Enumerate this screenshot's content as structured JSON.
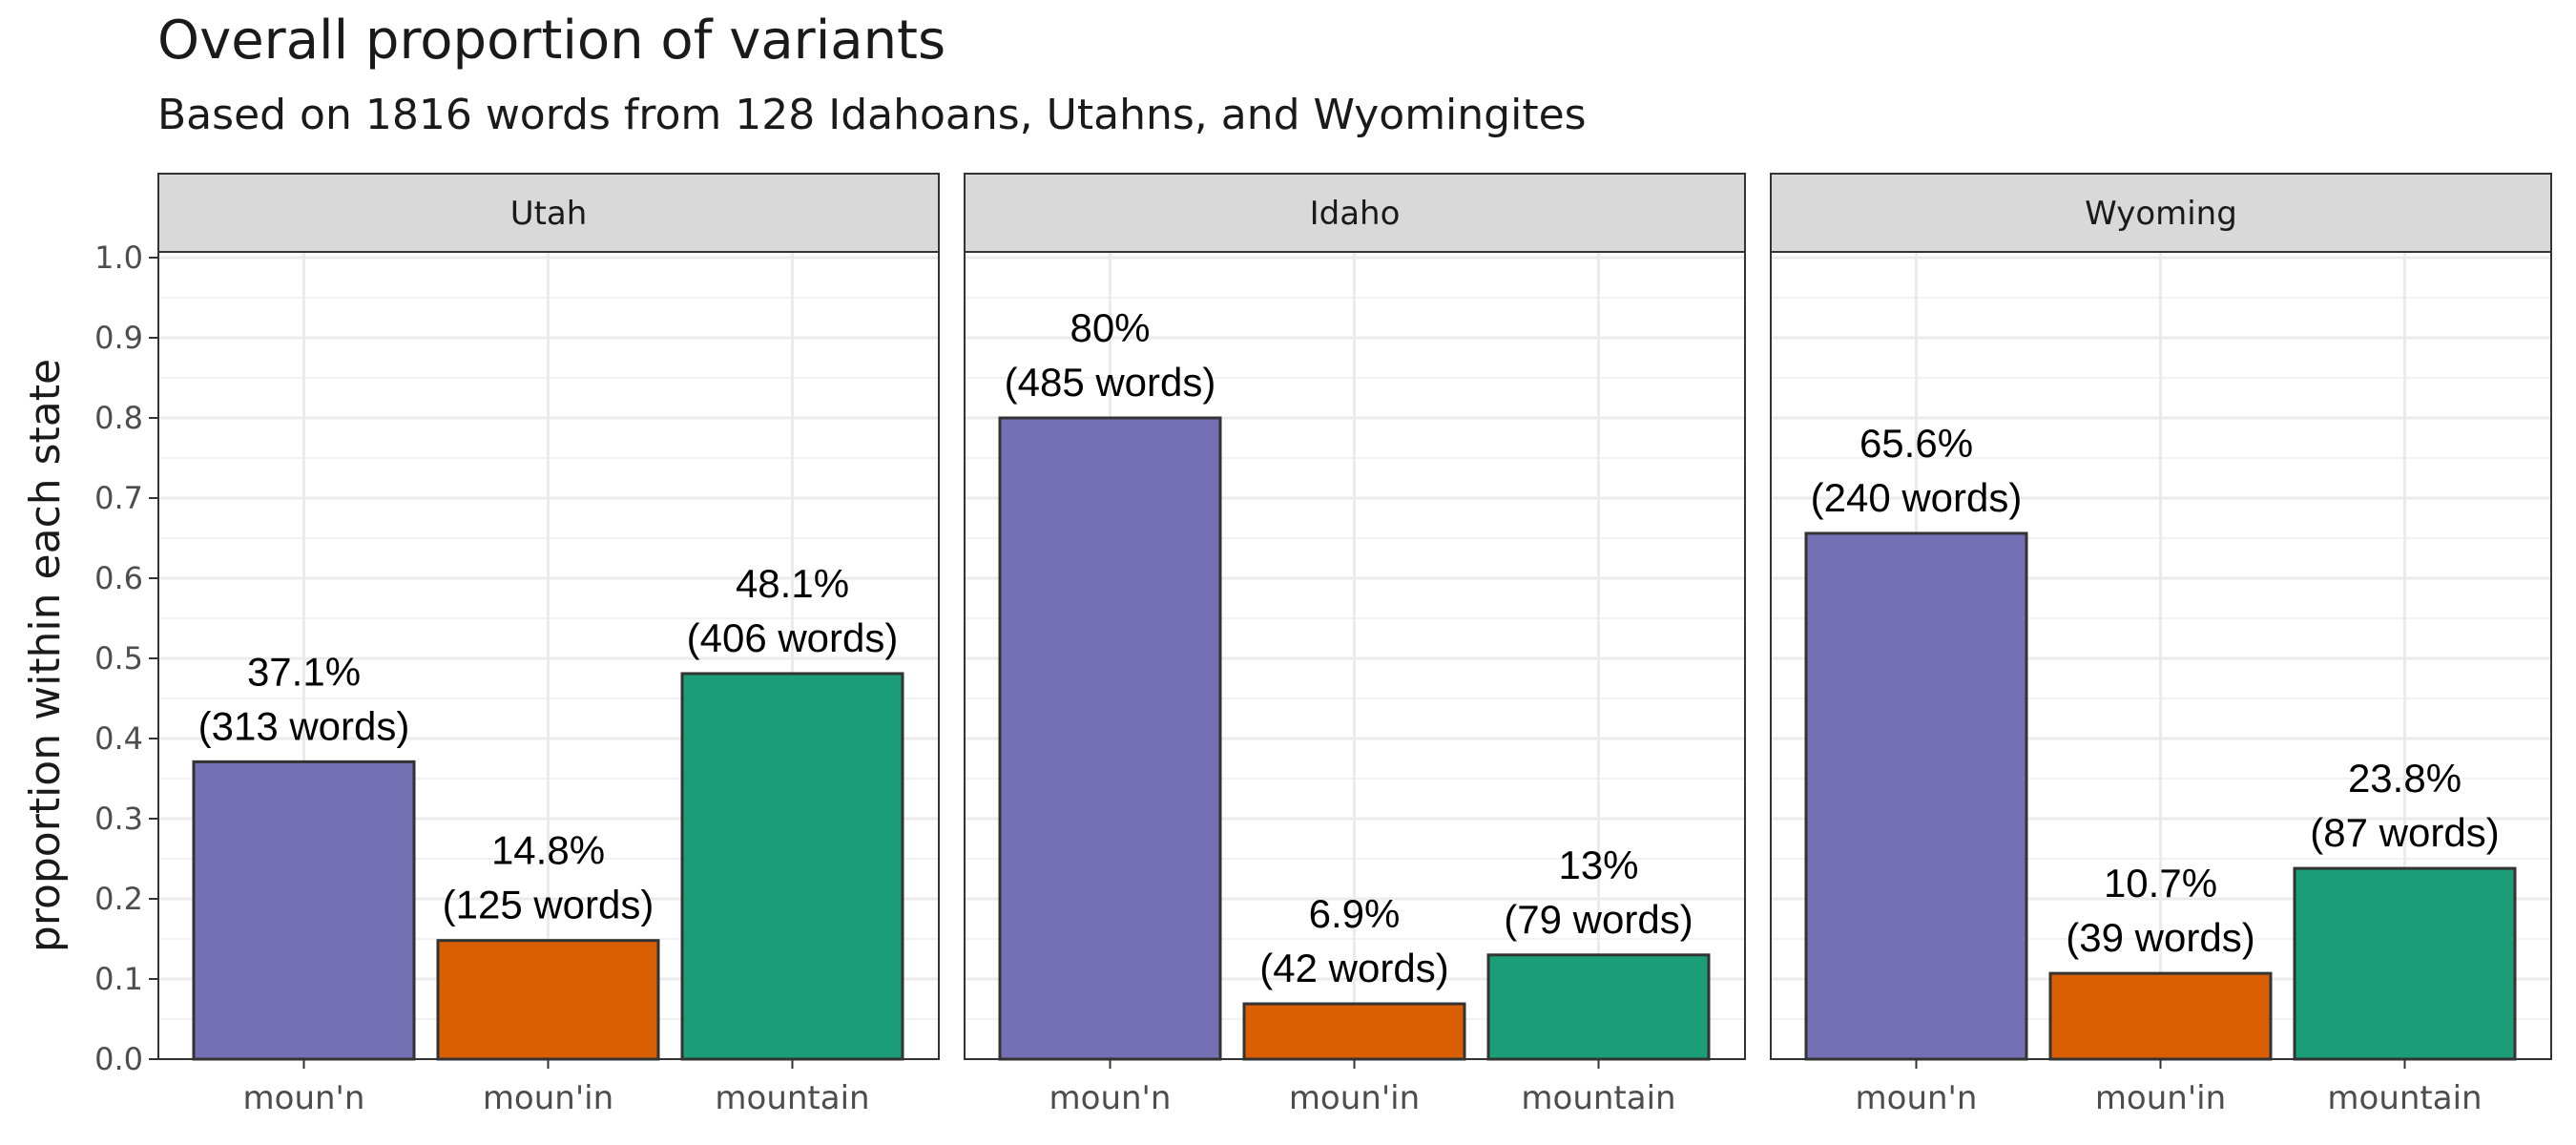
{
  "chart_data": {
    "type": "bar",
    "title": "Overall proportion of variants",
    "subtitle": "Based on 1816 words from 128 Idahoans, Utahns, and Wyomingites",
    "ylabel": "proportion within each state",
    "xlabel": "",
    "ylim": [
      0,
      1.0
    ],
    "yticks": [
      "0.0",
      "0.1",
      "0.2",
      "0.3",
      "0.4",
      "0.5",
      "0.6",
      "0.7",
      "0.8",
      "0.9",
      "1.0"
    ],
    "grid": true,
    "categories": [
      "moun'n",
      "moun'in",
      "mountain"
    ],
    "colors": [
      "#7570b3",
      "#d95f02",
      "#1b9e77"
    ],
    "facets": [
      {
        "name": "Utah",
        "values": [
          0.371,
          0.148,
          0.481
        ],
        "labels": [
          [
            "37.1%",
            "(313 words)"
          ],
          [
            "14.8%",
            "(125 words)"
          ],
          [
            "48.1%",
            "(406 words)"
          ]
        ]
      },
      {
        "name": "Idaho",
        "values": [
          0.8,
          0.069,
          0.13
        ],
        "labels": [
          [
            "80%",
            "(485 words)"
          ],
          [
            "6.9%",
            "(42 words)"
          ],
          [
            "13%",
            "(79 words)"
          ]
        ]
      },
      {
        "name": "Wyoming",
        "values": [
          0.656,
          0.107,
          0.238
        ],
        "labels": [
          [
            "65.6%",
            "(240 words)"
          ],
          [
            "10.7%",
            "(39 words)"
          ],
          [
            "23.8%",
            "(87 words)"
          ]
        ]
      }
    ]
  }
}
